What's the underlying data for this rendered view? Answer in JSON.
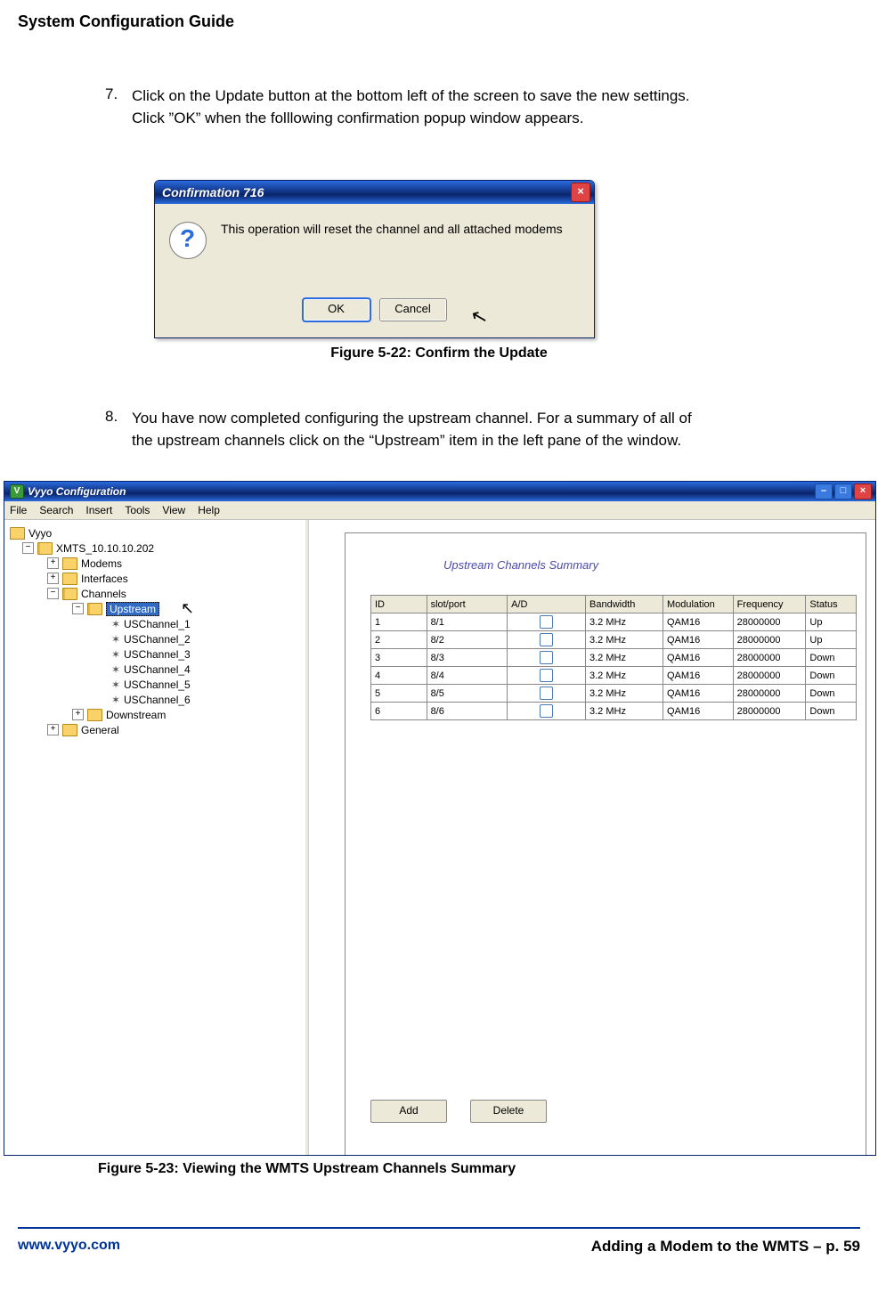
{
  "page": {
    "title": "System Configuration Guide",
    "step7_num": "7.",
    "step7_text": "Click on the Update button at the bottom left of the screen to save the new settings.  Click ”OK” when the folllowing confirmation popup window appears.",
    "fig22_caption": "Figure 5-22: Confirm the Update",
    "step8_num": "8.",
    "step8_text": "You have now completed configuring the upstream channel.  For a summary of all of the upstream channels click on the “Upstream” item in the left pane of the window.",
    "fig23_caption": "Figure 5-23: Viewing the WMTS Upstream Channels Summary",
    "footer_left": "www.vyyo.com",
    "footer_right": "Adding a Modem to the WMTS – p. 59"
  },
  "dialog": {
    "title": "Confirmation 716",
    "message": "This operation will reset the channel and all attached modems",
    "ok": "OK",
    "cancel": "Cancel",
    "close_glyph": "×"
  },
  "app": {
    "title": "Vyyo Configuration",
    "logo_letter": "V",
    "min_glyph": "–",
    "max_glyph": "□",
    "close_glyph": "×",
    "menu": [
      "File",
      "Search",
      "Insert",
      "Tools",
      "View",
      "Help"
    ],
    "tree": {
      "root": "Vyyo",
      "xmts": "XMTS_10.10.10.202",
      "modems": "Modems",
      "interfaces": "Interfaces",
      "channels": "Channels",
      "upstream_label": "Upstream",
      "uschannels": [
        "USChannel_1",
        "USChannel_2",
        "USChannel_3",
        "USChannel_4",
        "USChannel_5",
        "USChannel_6"
      ],
      "downstream": "Downstream",
      "general": "General",
      "plus": "+",
      "minus": "−",
      "leaf": "✶"
    },
    "content": {
      "title": "Upstream Channels Summary",
      "columns": [
        "ID",
        "slot/port",
        "A/D",
        "Bandwidth",
        "Modulation",
        "Frequency",
        "Status"
      ],
      "rows": [
        {
          "id": "1",
          "slot": "8/1",
          "bw": "3.2 MHz",
          "mod": "QAM16",
          "freq": "28000000",
          "stat": "Up"
        },
        {
          "id": "2",
          "slot": "8/2",
          "bw": "3.2 MHz",
          "mod": "QAM16",
          "freq": "28000000",
          "stat": "Up"
        },
        {
          "id": "3",
          "slot": "8/3",
          "bw": "3.2 MHz",
          "mod": "QAM16",
          "freq": "28000000",
          "stat": "Down"
        },
        {
          "id": "4",
          "slot": "8/4",
          "bw": "3.2 MHz",
          "mod": "QAM16",
          "freq": "28000000",
          "stat": "Down"
        },
        {
          "id": "5",
          "slot": "8/5",
          "bw": "3.2 MHz",
          "mod": "QAM16",
          "freq": "28000000",
          "stat": "Down"
        },
        {
          "id": "6",
          "slot": "8/6",
          "bw": "3.2 MHz",
          "mod": "QAM16",
          "freq": "28000000",
          "stat": "Down"
        }
      ],
      "add": "Add",
      "delete": "Delete"
    }
  },
  "colors": {
    "titlebar_blue": "#0a246a",
    "link_blue": "#003399",
    "panel_bg": "#ece9d8"
  }
}
